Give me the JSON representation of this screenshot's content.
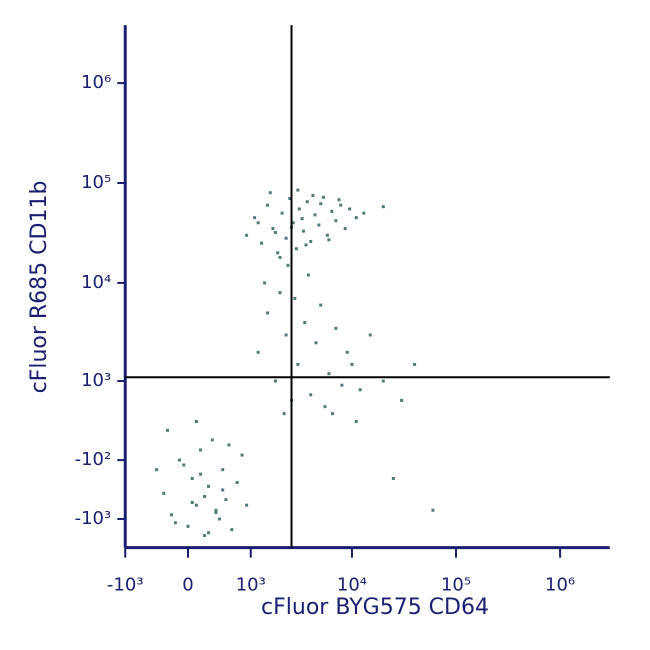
{
  "chart_data": {
    "type": "scatter",
    "x_label": "cFluor BYG575 CD64",
    "y_label": "cFluor R685 CD11b",
    "color": "#4e7c79",
    "axis_color": "#1a1f71",
    "xlim": [
      -1000,
      3000000
    ],
    "ylim": [
      -2000,
      3800000
    ],
    "xticks": [
      {
        "value": -1000,
        "label": "-10³"
      },
      0,
      {
        "value": 1000,
        "label": "10³"
      },
      {
        "value": 10000,
        "label": "10⁴"
      },
      {
        "value": 100000,
        "label": "10⁵"
      },
      {
        "value": 1000000,
        "label": "10⁶"
      }
    ],
    "yticks": [
      {
        "value": -1000,
        "label": "-10³"
      },
      {
        "value": -100,
        "label": "-10²"
      },
      {
        "value": 1000,
        "label": "10³"
      },
      {
        "value": 10000,
        "label": "10⁴"
      },
      {
        "value": 100000,
        "label": "10⁵"
      },
      {
        "value": 1000000,
        "label": "10⁶"
      }
    ],
    "gate_x": 2600,
    "gate_y": 1100,
    "x": [
      900,
      1100,
      1300,
      1500,
      1700,
      1900,
      2100,
      2300,
      2500,
      2700,
      2900,
      3100,
      3400,
      3700,
      4000,
      4400,
      4800,
      5300,
      5800,
      6400,
      7000,
      7800,
      8600,
      9500,
      11000,
      13000,
      1600,
      2000,
      2400,
      3000,
      3600,
      4200,
      5000,
      6000,
      7500,
      1200,
      1800,
      2600,
      3300,
      20000,
      -400,
      -300,
      -200,
      -100,
      0,
      50,
      100,
      150,
      200,
      250,
      300,
      350,
      400,
      450,
      500,
      550,
      600,
      700,
      800,
      900,
      -250,
      -150,
      50,
      150,
      250,
      350,
      450,
      -50,
      100,
      200,
      1200,
      1500,
      1800,
      2000,
      2300,
      2600,
      3000,
      3500,
      4000,
      4500,
      5000,
      6000,
      7000,
      8000,
      9000,
      10000,
      12000,
      15000,
      20000,
      30000,
      1400,
      2200,
      2800,
      3800,
      5500,
      6500,
      11000,
      25000,
      40000,
      60000
    ],
    "y": [
      30000,
      45000,
      25000,
      60000,
      35000,
      20000,
      50000,
      28000,
      70000,
      40000,
      22000,
      55000,
      33000,
      65000,
      26000,
      48000,
      38000,
      72000,
      30000,
      52000,
      42000,
      60000,
      35000,
      55000,
      45000,
      50000,
      80000,
      18000,
      15000,
      85000,
      24000,
      75000,
      62000,
      27000,
      68000,
      40000,
      32000,
      36000,
      44000,
      58000,
      -200,
      -500,
      -900,
      -100,
      -1200,
      -300,
      -700,
      0,
      -1500,
      -400,
      100,
      -800,
      -1000,
      -200,
      -600,
      50,
      -1300,
      -350,
      -50,
      -700,
      200,
      -1100,
      -650,
      -250,
      -1400,
      -850,
      -450,
      -150,
      300,
      -550,
      2000,
      5000,
      1000,
      8000,
      3000,
      600,
      1500,
      4000,
      700,
      2500,
      6000,
      1200,
      3500,
      900,
      2000,
      1500,
      800,
      3000,
      1000,
      600,
      10000,
      400,
      7000,
      12000,
      500,
      400,
      300,
      -300,
      1500,
      -800
    ]
  }
}
